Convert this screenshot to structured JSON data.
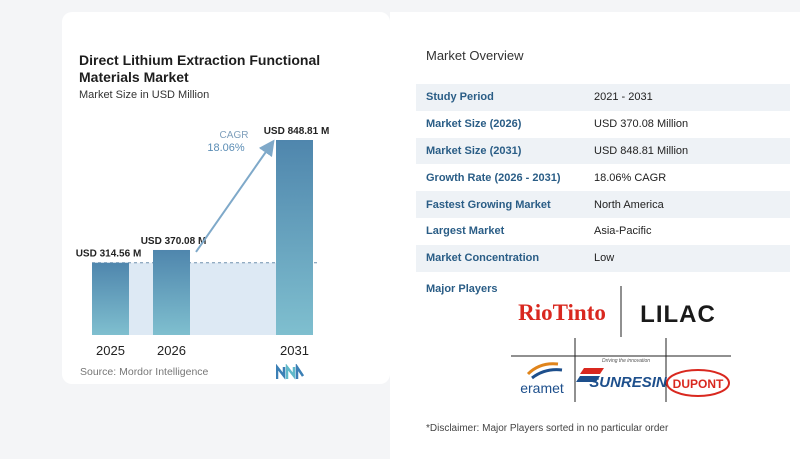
{
  "chart": {
    "title": "Direct Lithium Extraction Functional Materials Market",
    "subtitle": "Market Size in USD Million",
    "source": "Source: Mordor Intelligence",
    "cagr_label": "CAGR",
    "cagr_value": "18.06%"
  },
  "chart_data": {
    "type": "bar",
    "categories": [
      "2025",
      "2026",
      "2031"
    ],
    "values": [
      314.56,
      370.08,
      848.81
    ],
    "value_labels": [
      "USD 314.56 M",
      "USD 370.08 M",
      "USD 848.81 M"
    ],
    "title": "Direct Lithium Extraction Functional Materials Market",
    "subtitle": "Market Size in USD Million",
    "xlabel": "",
    "ylabel": "",
    "annotation": "CAGR 18.06%",
    "grid": false,
    "colors": {
      "bar_top": "#4f86ad",
      "bar_bottom": "#7fbfcf",
      "shade": "#dde9f4",
      "arrow": "#7fa9c9"
    }
  },
  "overview": {
    "title": "Market Overview",
    "rows": [
      {
        "key": "Study Period",
        "value": "2021 - 2031"
      },
      {
        "key": "Market Size (2026)",
        "value": "USD 370.08 Million"
      },
      {
        "key": "Market Size (2031)",
        "value": "USD 848.81 Million"
      },
      {
        "key": "Growth Rate (2026 - 2031)",
        "value": "18.06% CAGR"
      },
      {
        "key": "Fastest Growing Market",
        "value": "North America"
      },
      {
        "key": "Largest Market",
        "value": "Asia-Pacific"
      },
      {
        "key": "Market Concentration",
        "value": "Low"
      }
    ],
    "players_title": "Major Players",
    "players": [
      "RioTinto",
      "LILAC",
      "eramet",
      "SUNRESIN",
      "DUPONT"
    ],
    "sunresin_tagline": "Driving the innovation",
    "disclaimer": "*Disclaimer: Major Players sorted in no particular order"
  }
}
